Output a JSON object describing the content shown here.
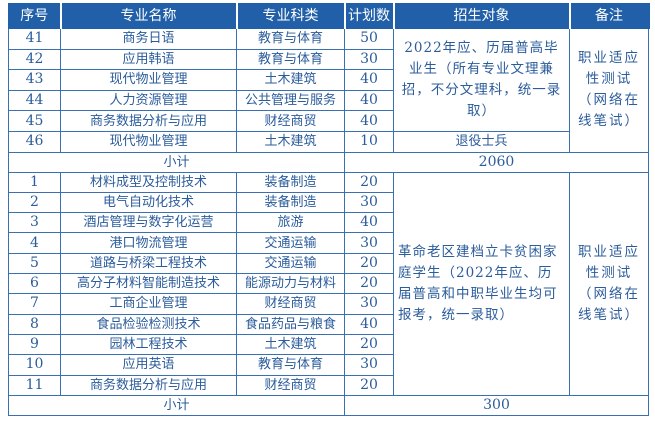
{
  "headers": [
    "序号",
    "专业名称",
    "专业科类",
    "计划数",
    "招生对象",
    "备注"
  ],
  "block1": {
    "rows": [
      {
        "no": "41",
        "major": "商务日语",
        "category": "教育与体育",
        "plan": "50"
      },
      {
        "no": "42",
        "major": "应用韩语",
        "category": "教育与体育",
        "plan": "30"
      },
      {
        "no": "43",
        "major": "现代物业管理",
        "category": "土木建筑",
        "plan": "40"
      },
      {
        "no": "44",
        "major": "人力资源管理",
        "category": "公共管理与服务",
        "plan": "40"
      },
      {
        "no": "45",
        "major": "商务数据分析与应用",
        "category": "财经商贸",
        "plan": "40"
      },
      {
        "no": "46",
        "major": "现代物业管理",
        "category": "土木建筑",
        "plan": "10"
      }
    ],
    "target_main": "2022年应、历届普高毕业生（所有专业文理兼招，不分文理科，统一录取）",
    "target_veteran": "退役士兵",
    "note": "职业适应性测试（网络在线笔试）",
    "subtotal_label": "小计",
    "subtotal_value": "2060"
  },
  "block2": {
    "rows": [
      {
        "no": "1",
        "major": "材料成型及控制技术",
        "category": "装备制造",
        "plan": "20"
      },
      {
        "no": "2",
        "major": "电气自动化技术",
        "category": "装备制造",
        "plan": "30"
      },
      {
        "no": "3",
        "major": "酒店管理与数字化运营",
        "category": "旅游",
        "plan": "40"
      },
      {
        "no": "4",
        "major": "港口物流管理",
        "category": "交通运输",
        "plan": "30"
      },
      {
        "no": "5",
        "major": "道路与桥梁工程技术",
        "category": "交通运输",
        "plan": "20"
      },
      {
        "no": "6",
        "major": "高分子材料智能制造技术",
        "category": "能源动力与材料",
        "plan": "20"
      },
      {
        "no": "7",
        "major": "工商企业管理",
        "category": "财经商贸",
        "plan": "30"
      },
      {
        "no": "8",
        "major": "食品检验检测技术",
        "category": "食品药品与粮食",
        "plan": "40"
      },
      {
        "no": "9",
        "major": "园林工程技术",
        "category": "土木建筑",
        "plan": "20"
      },
      {
        "no": "10",
        "major": "应用英语",
        "category": "教育与体育",
        "plan": "30"
      },
      {
        "no": "11",
        "major": "商务数据分析与应用",
        "category": "财经商贸",
        "plan": "20"
      }
    ],
    "target": "革命老区建档立卡贫困家庭学生（2022年应、历届普高和中职毕业生均可报考，统一录取）",
    "note": "职业适应性测试（网络在线笔试）",
    "subtotal_label": "小计",
    "subtotal_value": "300"
  },
  "colors": {
    "header_bg": "#2160a8",
    "text": "#2b5c9c",
    "border": "#3a6fb1"
  }
}
